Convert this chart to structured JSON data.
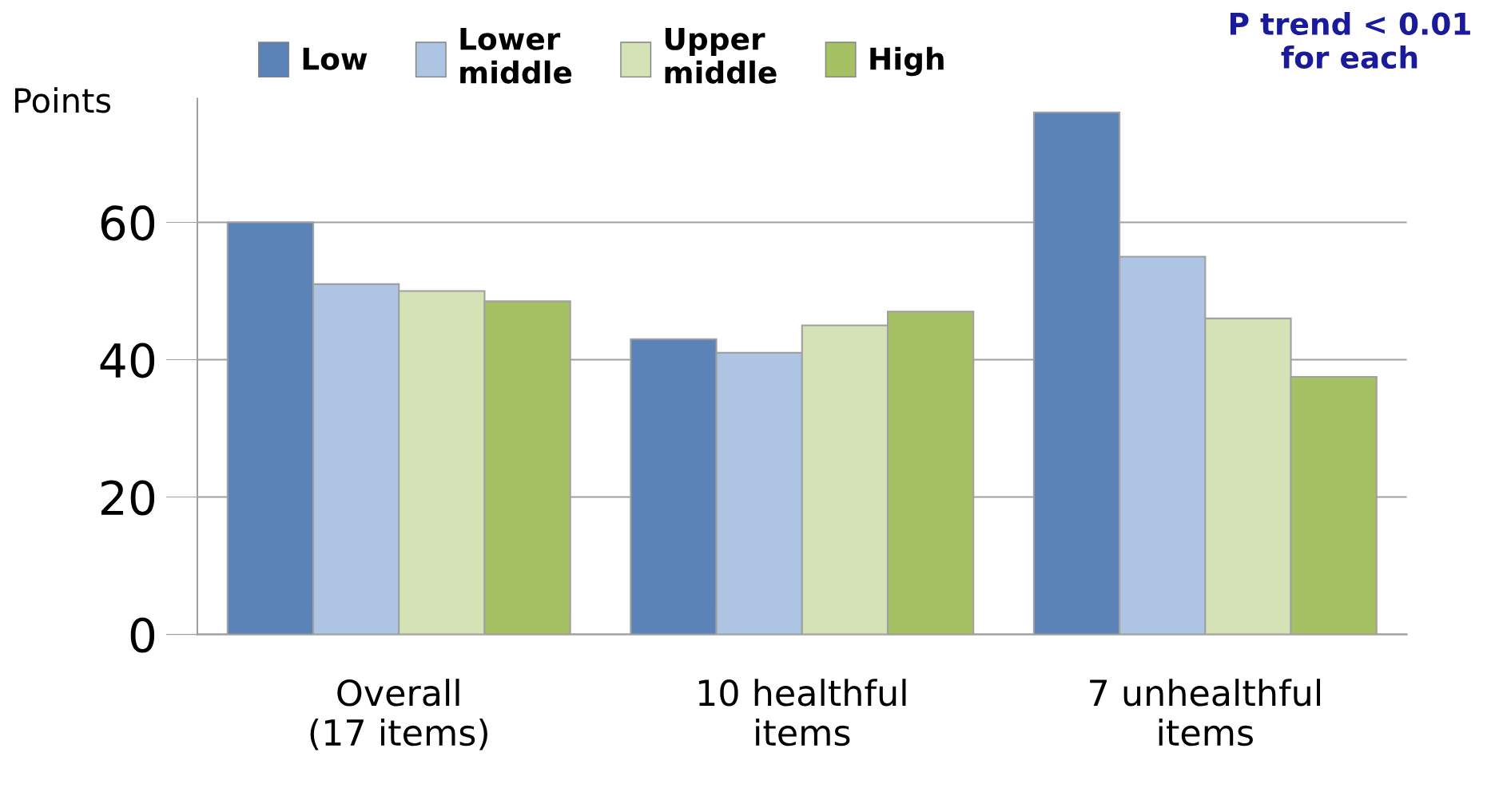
{
  "chart_data": {
    "type": "bar",
    "ylabel": "Points",
    "categories": [
      "Overall\n(17 items)",
      "10 healthful\nitems",
      "7 unhealthful\nitems"
    ],
    "series": [
      {
        "name": "Low",
        "color": "#5b83b8",
        "values": [
          60,
          43,
          76
        ]
      },
      {
        "name": "Lower\nmiddle",
        "color": "#adc4e2",
        "values": [
          51,
          41,
          55
        ]
      },
      {
        "name": "Upper\nmiddle",
        "color": "#d4e2b6",
        "values": [
          50,
          45,
          46
        ]
      },
      {
        "name": "High",
        "color": "#a5c163",
        "values": [
          48.5,
          47,
          37.5
        ]
      }
    ],
    "ylim": [
      0,
      78
    ],
    "yticks": [
      0,
      20,
      40,
      60
    ],
    "grid": "y",
    "legend": "top",
    "annotations": [
      "P trend < 0.01\nfor each"
    ]
  }
}
